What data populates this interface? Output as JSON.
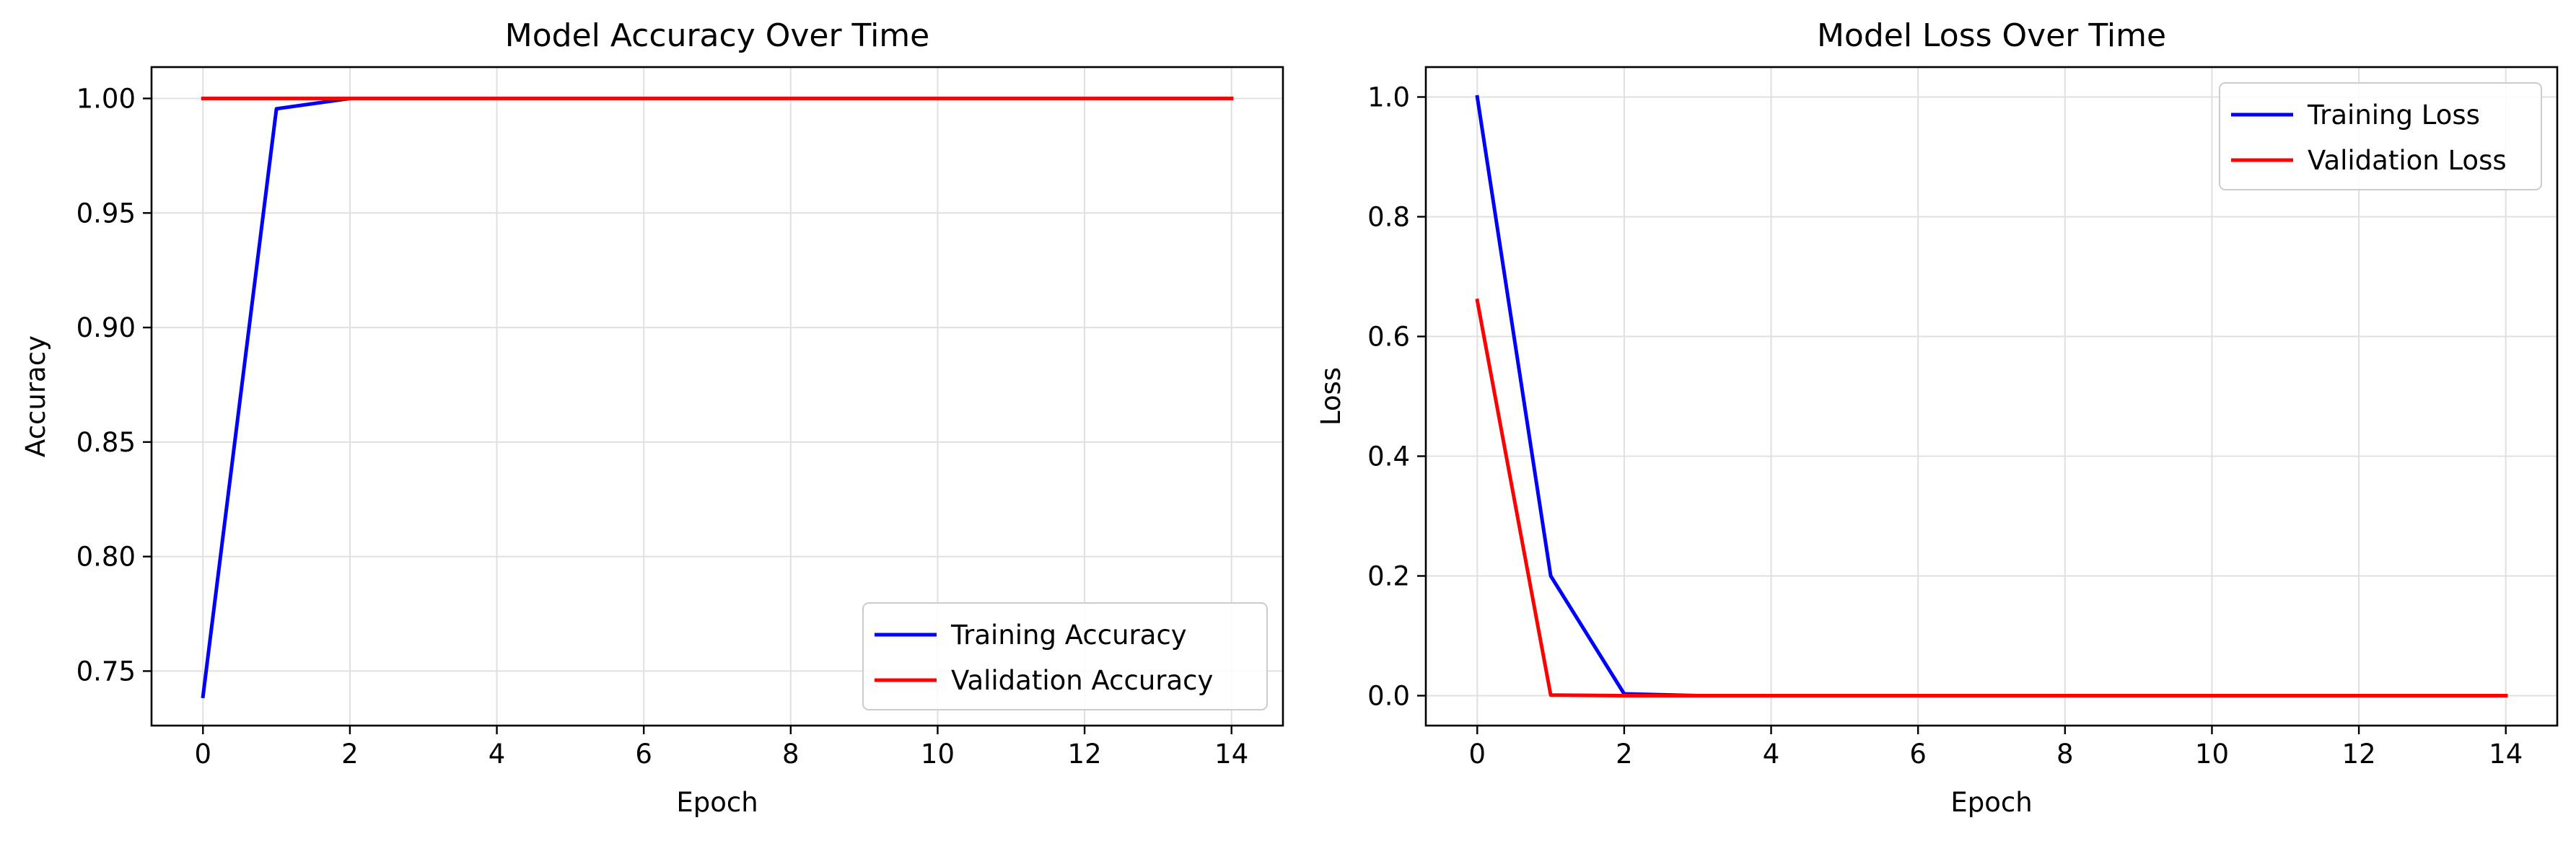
{
  "chart_data": [
    {
      "type": "line",
      "title": "Model Accuracy Over Time",
      "xlabel": "Epoch",
      "ylabel": "Accuracy",
      "xlim": [
        -0.7,
        14.7
      ],
      "ylim": [
        0.7262,
        1.0137
      ],
      "xticks": [
        0,
        2,
        4,
        6,
        8,
        10,
        12,
        14
      ],
      "xtick_labels": [
        "0",
        "2",
        "4",
        "6",
        "8",
        "10",
        "12",
        "14"
      ],
      "yticks": [
        0.75,
        0.8,
        0.85,
        0.9,
        0.95,
        1.0
      ],
      "ytick_labels": [
        "0.75",
        "0.80",
        "0.85",
        "0.90",
        "0.95",
        "1.00"
      ],
      "grid": true,
      "legend_position": "lower-right",
      "x": [
        0,
        1,
        2,
        3,
        4,
        5,
        6,
        7,
        8,
        9,
        10,
        11,
        12,
        13,
        14
      ],
      "series": [
        {
          "name": "Training Accuracy",
          "color": "#0000ff",
          "values": [
            0.739,
            0.9955,
            1.0,
            1.0,
            1.0,
            1.0,
            1.0,
            1.0,
            1.0,
            1.0,
            1.0,
            1.0,
            1.0,
            1.0,
            1.0
          ]
        },
        {
          "name": "Validation Accuracy",
          "color": "#ff0000",
          "values": [
            1.0,
            1.0,
            1.0,
            1.0,
            1.0,
            1.0,
            1.0,
            1.0,
            1.0,
            1.0,
            1.0,
            1.0,
            1.0,
            1.0,
            1.0
          ]
        }
      ]
    },
    {
      "type": "line",
      "title": "Model Loss Over Time",
      "xlabel": "Epoch",
      "ylabel": "Loss",
      "xlim": [
        -0.7,
        14.7
      ],
      "ylim": [
        -0.05,
        1.05
      ],
      "xticks": [
        0,
        2,
        4,
        6,
        8,
        10,
        12,
        14
      ],
      "xtick_labels": [
        "0",
        "2",
        "4",
        "6",
        "8",
        "10",
        "12",
        "14"
      ],
      "yticks": [
        0.0,
        0.2,
        0.4,
        0.6,
        0.8,
        1.0
      ],
      "ytick_labels": [
        "0.0",
        "0.2",
        "0.4",
        "0.6",
        "0.8",
        "1.0"
      ],
      "grid": true,
      "legend_position": "upper-right",
      "x": [
        0,
        1,
        2,
        3,
        4,
        5,
        6,
        7,
        8,
        9,
        10,
        11,
        12,
        13,
        14
      ],
      "series": [
        {
          "name": "Training Loss",
          "color": "#0000ff",
          "values": [
            1.0,
            0.2,
            0.003,
            0.0,
            0.0,
            0.0,
            0.0,
            0.0,
            0.0,
            0.0,
            0.0,
            0.0,
            0.0,
            0.0,
            0.0
          ]
        },
        {
          "name": "Validation Loss",
          "color": "#ff0000",
          "values": [
            0.66,
            0.001,
            0.0,
            0.0,
            0.0,
            0.0,
            0.0,
            0.0,
            0.0,
            0.0,
            0.0,
            0.0,
            0.0,
            0.0,
            0.0
          ]
        }
      ]
    }
  ]
}
